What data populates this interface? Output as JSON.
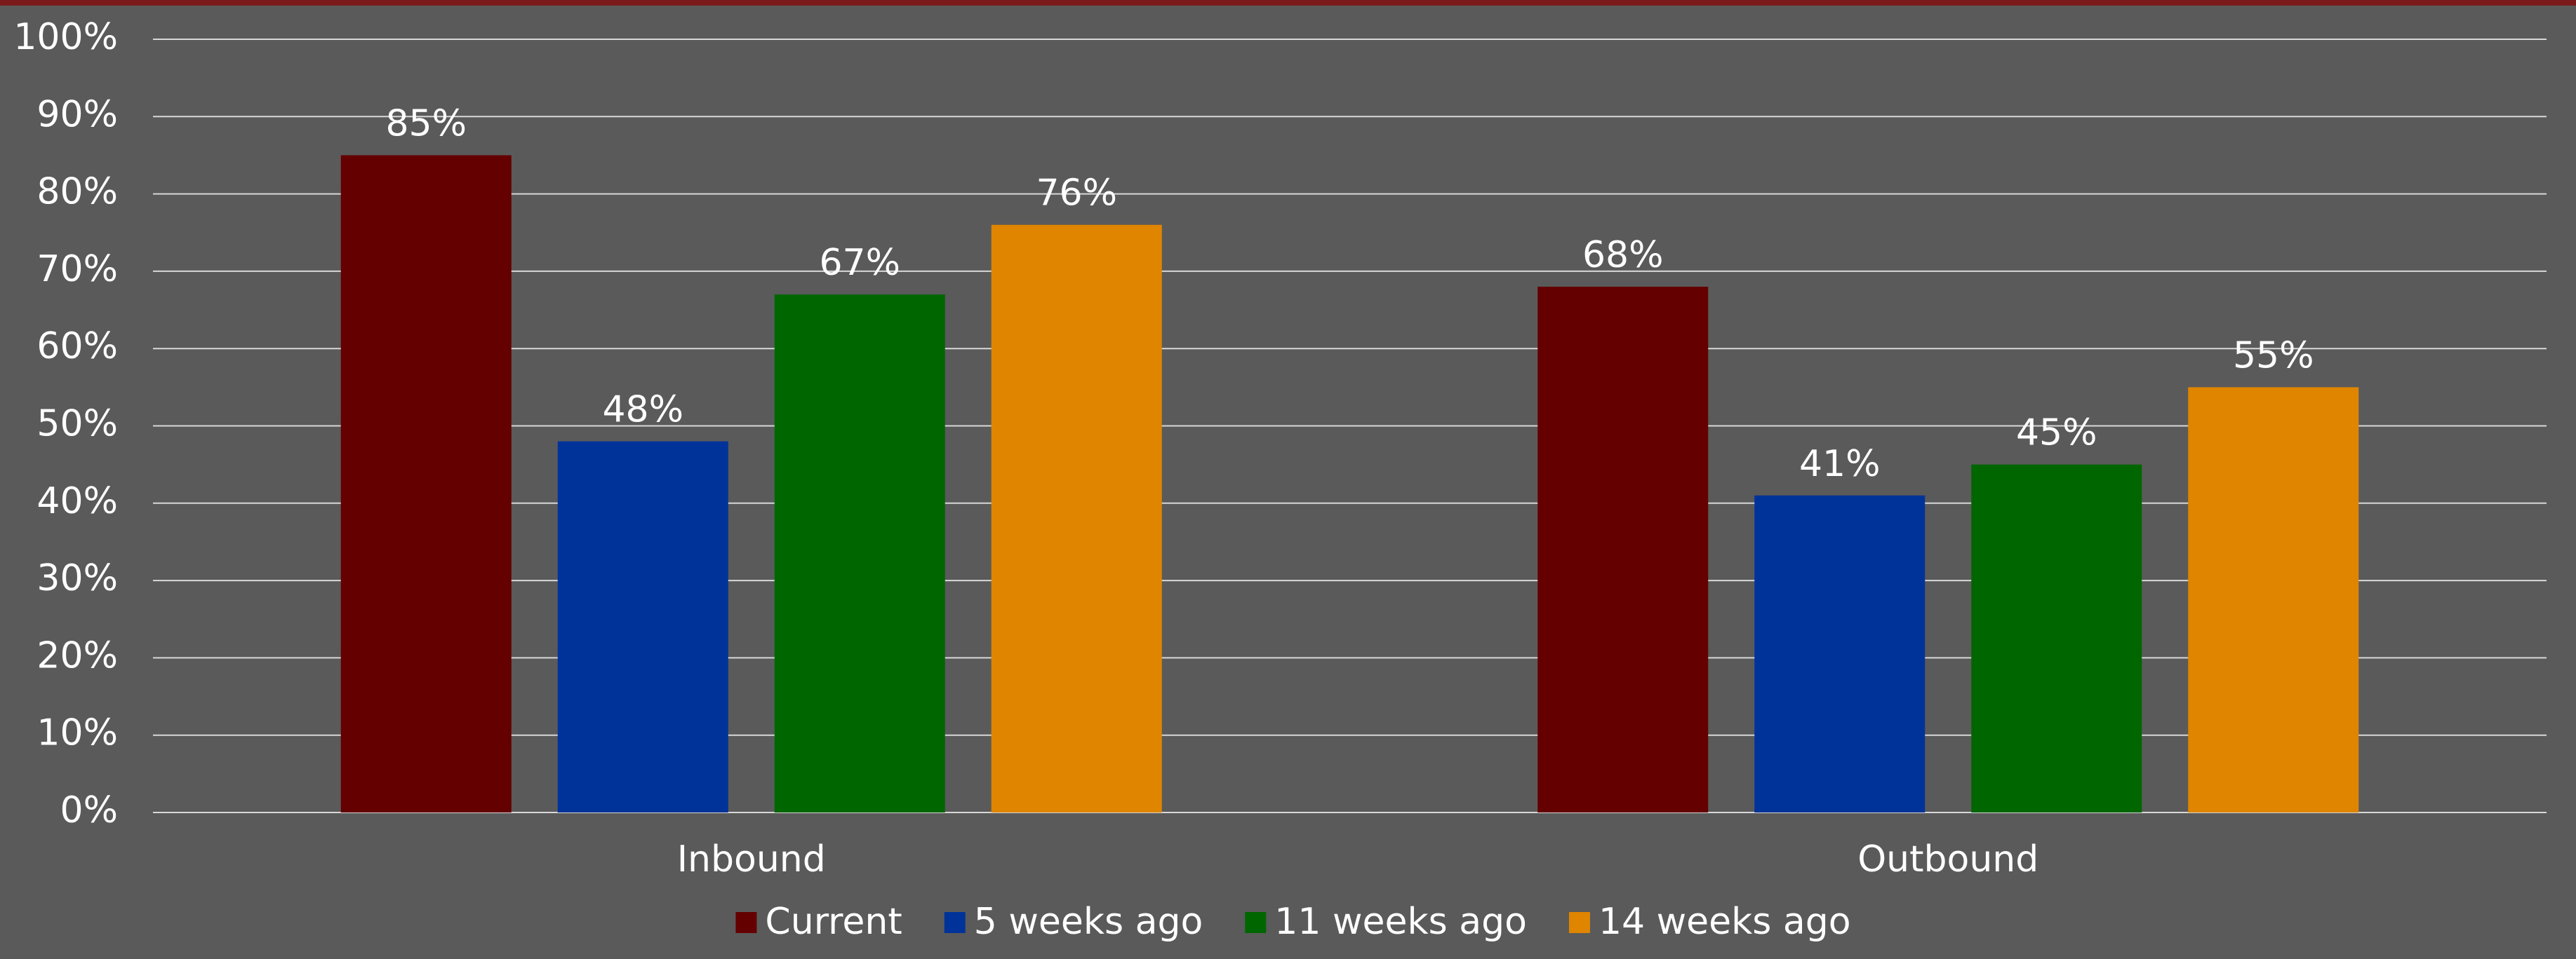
{
  "chart_data": {
    "type": "bar",
    "categories": [
      "Inbound",
      "Outbound"
    ],
    "series": [
      {
        "name": "Current",
        "color": "#640000",
        "values": [
          85,
          68
        ],
        "value_labels": [
          "85%",
          "68%"
        ]
      },
      {
        "name": "5 weeks ago",
        "color": "#003399",
        "values": [
          48,
          41
        ],
        "value_labels": [
          "48%",
          "41%"
        ]
      },
      {
        "name": "11 weeks ago",
        "color": "#006600",
        "values": [
          67,
          45
        ],
        "value_labels": [
          "67%",
          "45%"
        ]
      },
      {
        "name": "14 weeks ago",
        "color": "#e08500",
        "values": [
          76,
          55
        ],
        "value_labels": [
          "76%",
          "55%"
        ]
      }
    ],
    "ylim": [
      0,
      100
    ],
    "yticks": [
      {
        "value": 0,
        "label": "0%"
      },
      {
        "value": 10,
        "label": "10%"
      },
      {
        "value": 20,
        "label": "20%"
      },
      {
        "value": 30,
        "label": "30%"
      },
      {
        "value": 40,
        "label": "40%"
      },
      {
        "value": 50,
        "label": "50%"
      },
      {
        "value": 60,
        "label": "60%"
      },
      {
        "value": 70,
        "label": "70%"
      },
      {
        "value": 80,
        "label": "80%"
      },
      {
        "value": 90,
        "label": "90%"
      },
      {
        "value": 100,
        "label": "100%"
      }
    ],
    "grid": true,
    "legend": "bottom"
  }
}
